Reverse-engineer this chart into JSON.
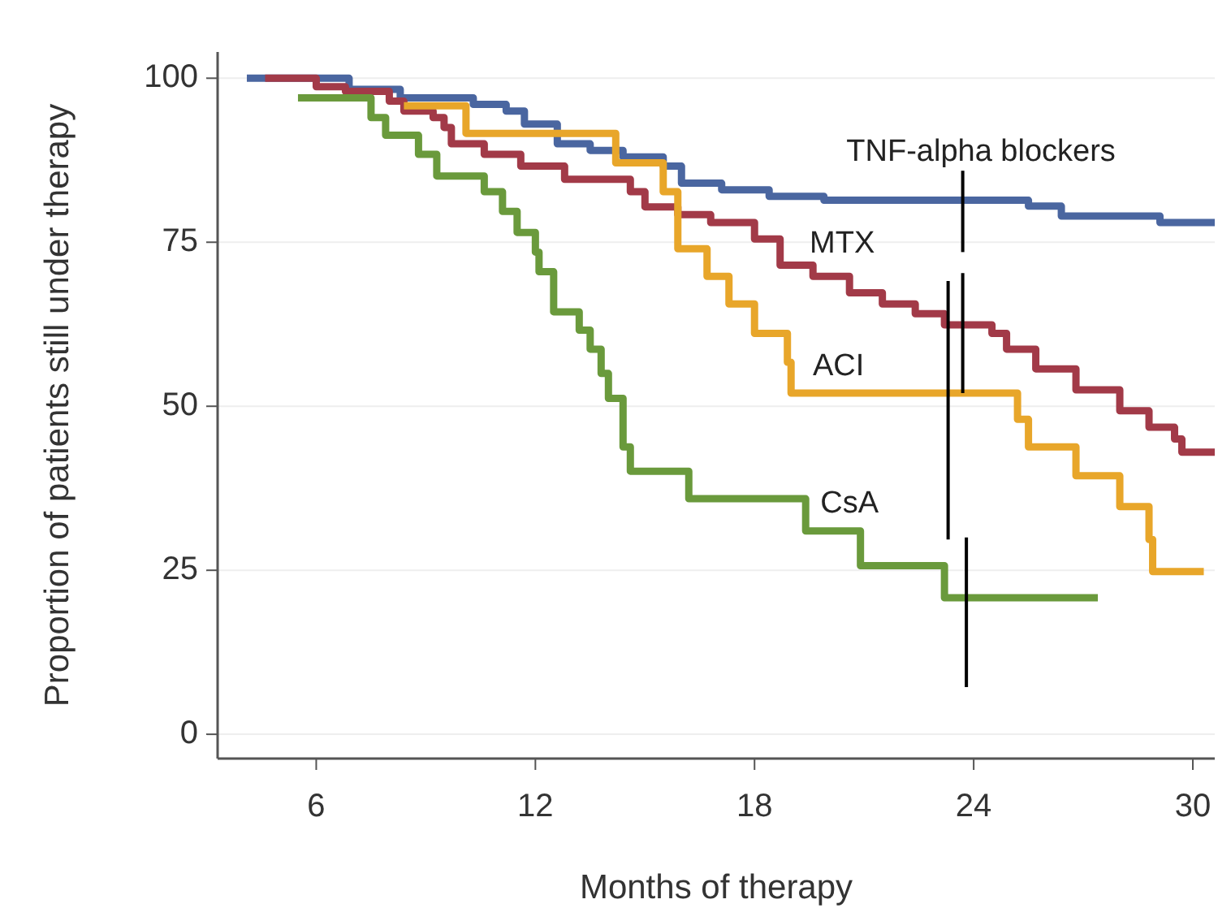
{
  "chart_data": {
    "type": "step",
    "xlabel": "Months of therapy",
    "ylabel": "Proportion of patients still under therapy",
    "xlim": [
      3.3,
      30.6
    ],
    "xticks": [
      6,
      12,
      18,
      24,
      30
    ],
    "ylim": [
      -3.7,
      104
    ],
    "yticks": [
      0,
      25,
      50,
      75,
      100
    ],
    "grid": "y",
    "line_style": "solid",
    "marker": "none",
    "series": [
      {
        "name": "TNF-alpha blockers",
        "color": "#4a66a0",
        "x": [
          4.1,
          6.9,
          8.3,
          10.3,
          11.2,
          11.7,
          12.6,
          13.5,
          14.4,
          15.5,
          16.0,
          17.1,
          18.4,
          19.9,
          25.5,
          26.4,
          29.1,
          30.6
        ],
        "values": [
          100,
          98.3,
          97,
          96,
          95,
          93,
          90,
          89,
          88,
          86.6,
          84,
          83,
          82,
          81.4,
          80.5,
          79,
          78,
          78
        ]
      },
      {
        "name": "MTX",
        "color": "#a23a48",
        "x": [
          4.6,
          6.0,
          6.8,
          8.0,
          8.4,
          9.2,
          9.5,
          9.7,
          10.6,
          11.6,
          12.8,
          14.6,
          15.0,
          15.9,
          16.8,
          18.0,
          18.7,
          19.6,
          20.6,
          21.5,
          22.4,
          23.2,
          24.5,
          24.9,
          25.7,
          26.8,
          28.0,
          28.8,
          29.5,
          29.7,
          30.6
        ],
        "values": [
          100,
          98.7,
          98,
          96.5,
          95,
          94,
          92.5,
          90,
          88.4,
          86.6,
          84.6,
          82.7,
          80.4,
          79.2,
          78,
          75.5,
          71.5,
          69.8,
          67.3,
          65.6,
          64.1,
          62.4,
          61.1,
          58.7,
          55.7,
          52.5,
          49.3,
          46.8,
          45,
          43,
          43
        ]
      },
      {
        "name": "ACI",
        "color": "#e8a62a",
        "x": [
          8.4,
          10.1,
          14.2,
          15.5,
          15.9,
          16.7,
          17.3,
          18.0,
          18.9,
          19.0,
          25.2,
          25.5,
          26.8,
          28.0,
          28.8,
          28.9,
          30.3
        ],
        "values": [
          95.8,
          91.6,
          87.1,
          82.7,
          74,
          69.8,
          65.6,
          61.1,
          56.7,
          52,
          48,
          43.8,
          39.4,
          34.7,
          29.7,
          24.8,
          24.8
        ]
      },
      {
        "name": "CsA",
        "color": "#6a9a3c",
        "x": [
          5.5,
          7.5,
          7.9,
          8.8,
          9.3,
          10.6,
          11.1,
          11.5,
          12.0,
          12.1,
          12.5,
          13.2,
          13.5,
          13.8,
          14.0,
          14.4,
          14.6,
          16.2,
          19.4,
          20.9,
          23.2,
          27.4
        ],
        "values": [
          97,
          94,
          91.3,
          88.4,
          85.1,
          82.7,
          79.7,
          76.5,
          73.5,
          70.5,
          64.4,
          61.6,
          58.7,
          55,
          51.2,
          43.8,
          40.1,
          35.9,
          31,
          25.7,
          20.8,
          20.8
        ]
      },
      {
        "type": "line",
        "color": "#000000",
        "x": [
          23.7,
          23.7
        ],
        "values": [
          73.5,
          85.9
        ]
      },
      {
        "type": "line",
        "color": "#000000",
        "x": [
          23.7,
          23.7
        ],
        "values": [
          52,
          70.3
        ]
      },
      {
        "type": "line",
        "color": "#000000",
        "x": [
          23.3,
          23.3
        ],
        "values": [
          29.7,
          69.1
        ]
      },
      {
        "type": "line",
        "color": "#000000",
        "x": [
          23.8,
          23.8
        ],
        "values": [
          7.2,
          30
        ]
      }
    ]
  }
}
